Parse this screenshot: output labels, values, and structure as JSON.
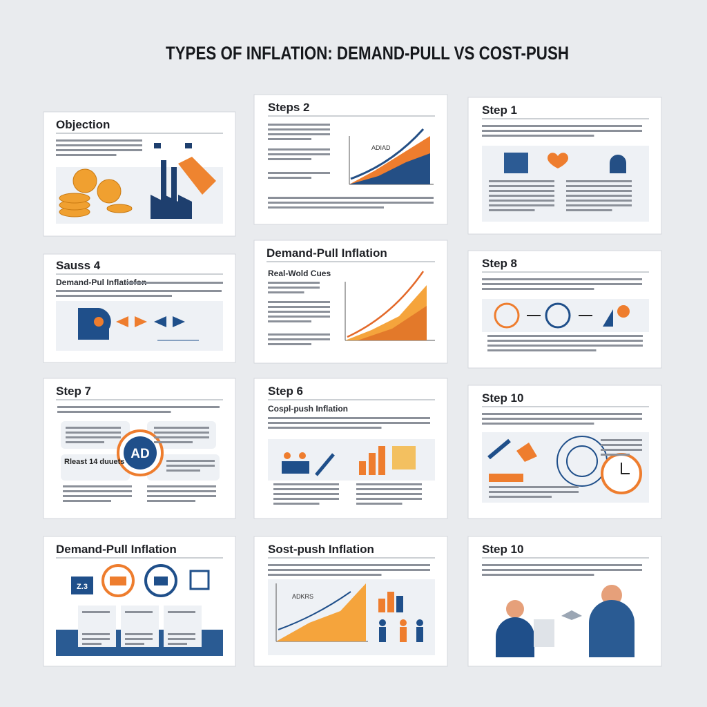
{
  "header": {
    "title": "TYPES OF INFLATION: DEMAND-PULL VS COST-PUSH"
  },
  "slides": [
    {
      "title": "Objection"
    },
    {
      "title": "Steps 2",
      "chart_label": "ADIAD"
    },
    {
      "title": "Step 1"
    },
    {
      "title": "Sauss 4",
      "subtitle": "Demand-Pul Inflatiofon"
    },
    {
      "title": "Demand-Pull Inflation",
      "subtitle": "Real-Wold Cues"
    },
    {
      "title": "Step 8"
    },
    {
      "title": "Step 7",
      "center_label": "AD",
      "callout": "Rleast 14 duuets"
    },
    {
      "title": "Step 6",
      "subtitle": "Cospl-push Inflation"
    },
    {
      "title": "Step 10"
    },
    {
      "title": "Demand-Pull Inflation",
      "icon_label": "Z.3"
    },
    {
      "title": "Sost-push Inflation",
      "chart_label": "ADKRS"
    },
    {
      "title": "Step 10"
    }
  ]
}
